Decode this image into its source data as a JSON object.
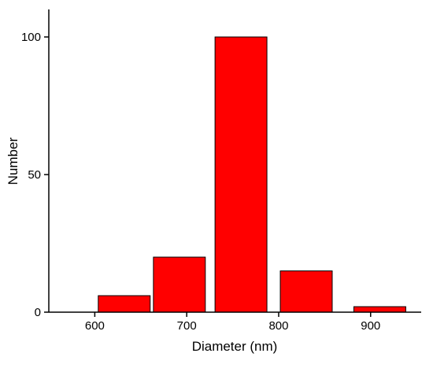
{
  "chart_data": {
    "type": "bar",
    "x": [
      632,
      692,
      759,
      830,
      910
    ],
    "values": [
      6,
      20,
      100,
      15,
      2
    ],
    "color": "#ff0000",
    "xlabel": "Diameter (nm)",
    "ylabel": "Number",
    "xlim": [
      550,
      955
    ],
    "xticks": [
      600,
      700,
      800,
      900
    ],
    "ylim": [
      0,
      110
    ],
    "yticks": [
      0,
      50,
      100
    ]
  }
}
